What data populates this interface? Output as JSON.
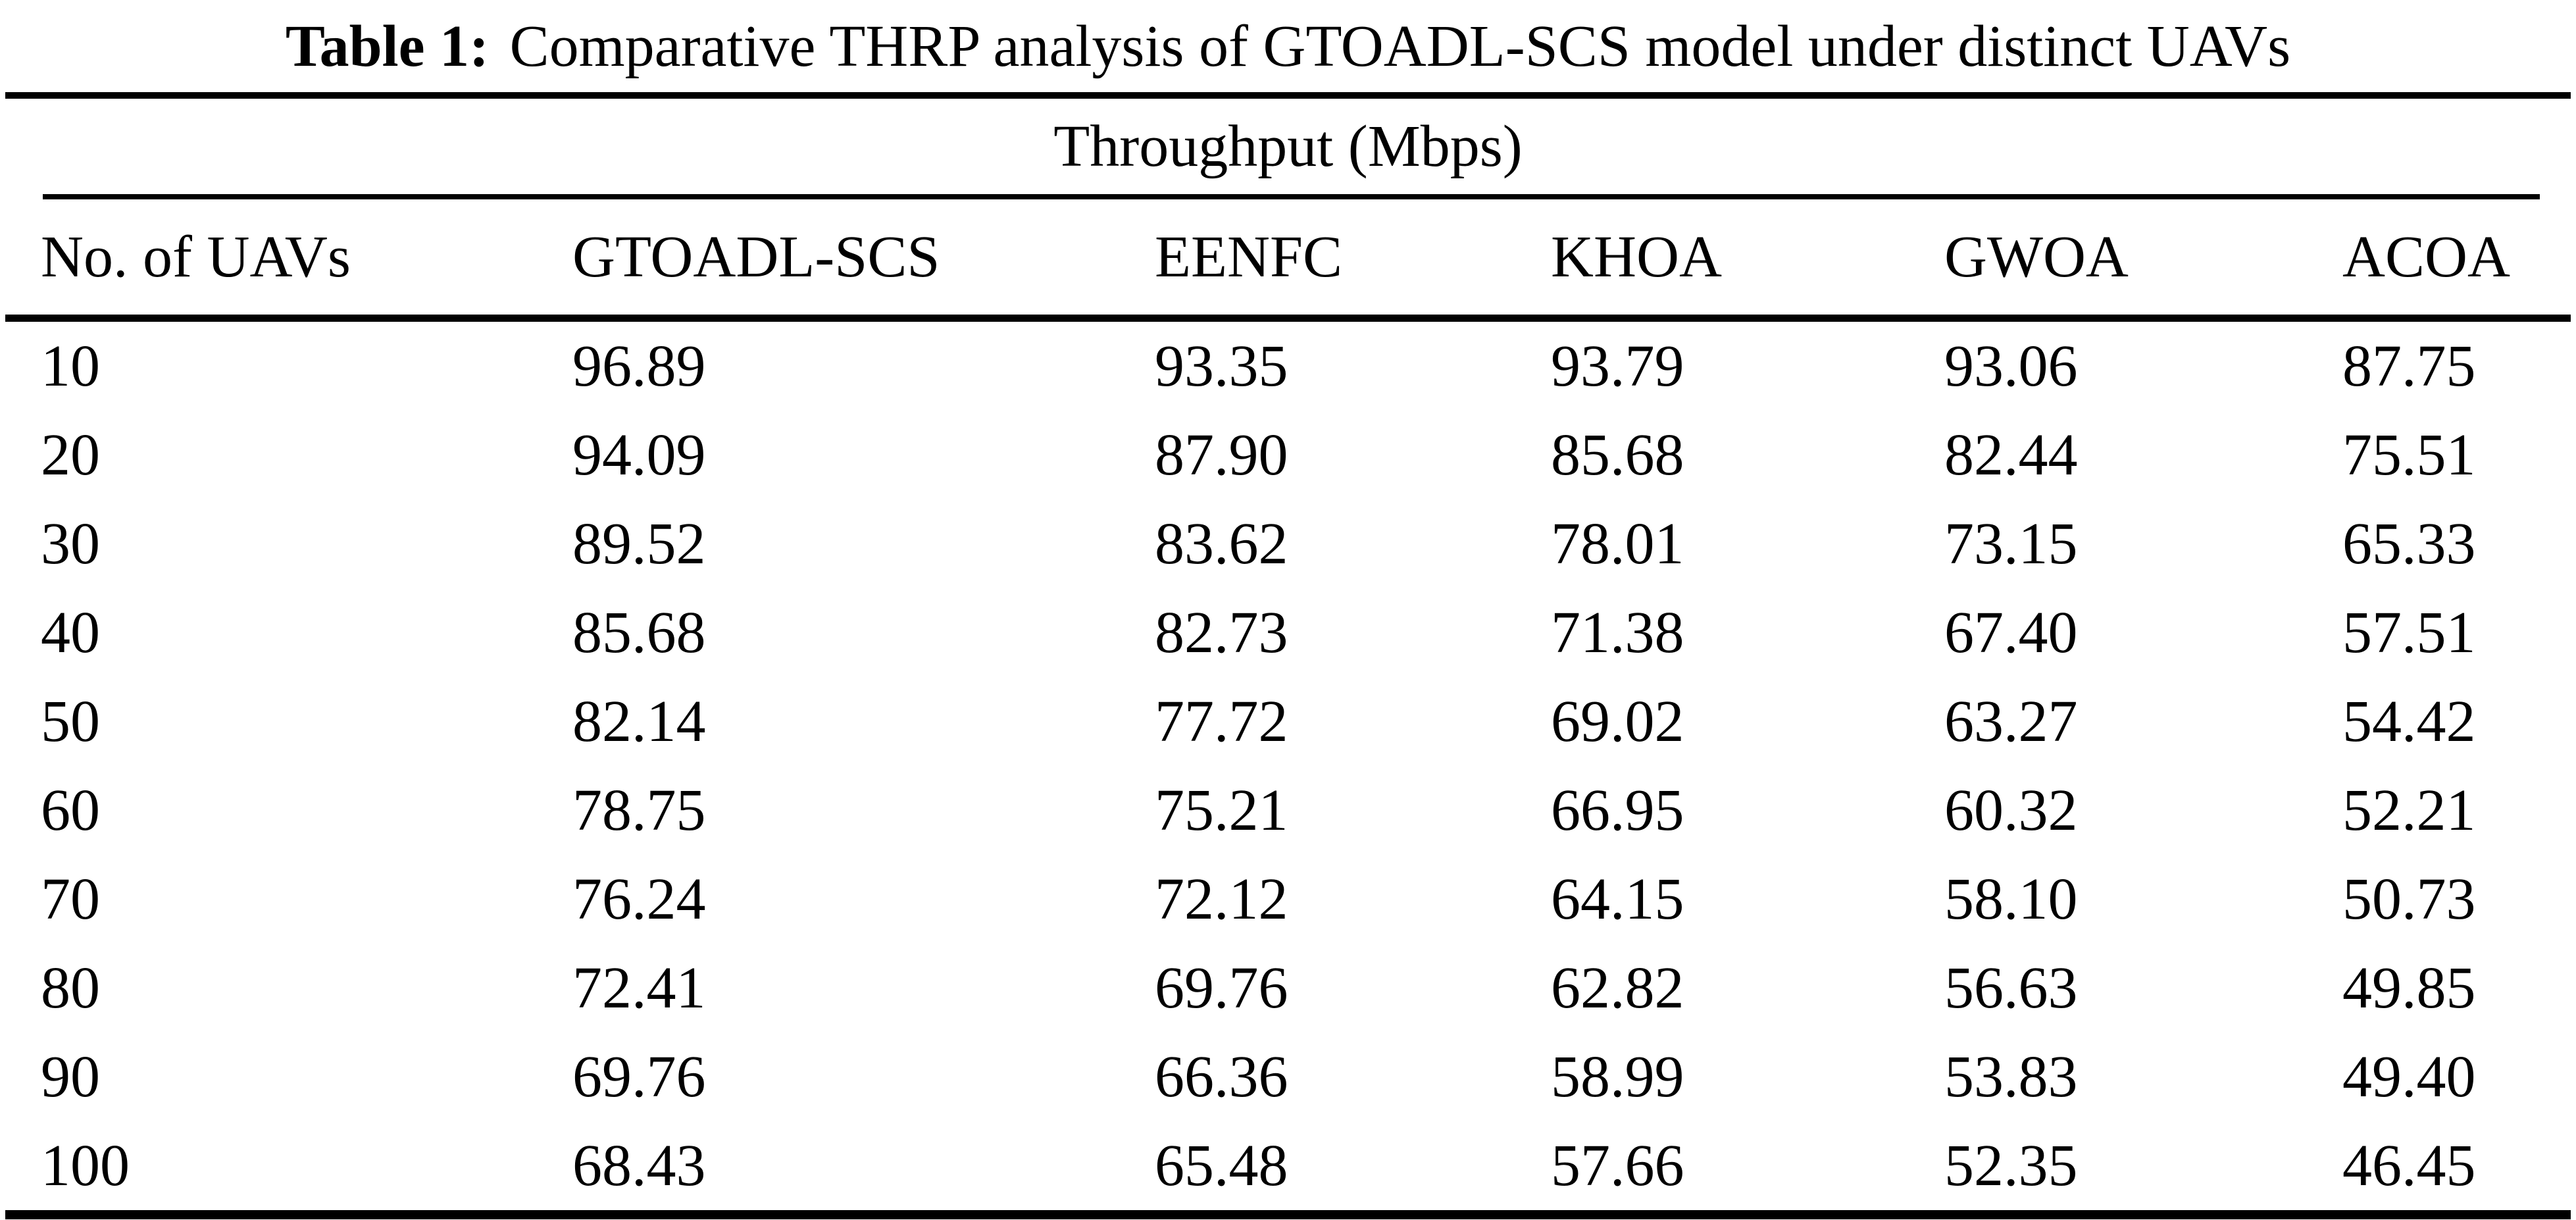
{
  "caption": {
    "label": "Table 1:",
    "text": "Comparative THRP analysis of GTOADL-SCS model under distinct UAVs"
  },
  "table": {
    "group_header": "Throughput (Mbps)",
    "columns": [
      "No. of UAVs",
      "GTOADL-SCS",
      "EENFC",
      "KHOA",
      "GWOA",
      "ACOA"
    ],
    "rows": [
      [
        "10",
        "96.89",
        "93.35",
        "93.79",
        "93.06",
        "87.75"
      ],
      [
        "20",
        "94.09",
        "87.90",
        "85.68",
        "82.44",
        "75.51"
      ],
      [
        "30",
        "89.52",
        "83.62",
        "78.01",
        "73.15",
        "65.33"
      ],
      [
        "40",
        "85.68",
        "82.73",
        "71.38",
        "67.40",
        "57.51"
      ],
      [
        "50",
        "82.14",
        "77.72",
        "69.02",
        "63.27",
        "54.42"
      ],
      [
        "60",
        "78.75",
        "75.21",
        "66.95",
        "60.32",
        "52.21"
      ],
      [
        "70",
        "76.24",
        "72.12",
        "64.15",
        "58.10",
        "50.73"
      ],
      [
        "80",
        "72.41",
        "69.76",
        "62.82",
        "56.63",
        "49.85"
      ],
      [
        "90",
        "69.76",
        "66.36",
        "58.99",
        "53.83",
        "49.40"
      ],
      [
        "100",
        "68.43",
        "65.48",
        "57.66",
        "52.35",
        "46.45"
      ]
    ],
    "colors": {
      "text": "#000000",
      "background": "#ffffff",
      "rule": "#000000"
    }
  },
  "chart_data": {
    "type": "table",
    "title": "Table 1: Comparative THRP analysis of GTOADL-SCS model under distinct UAVs",
    "group_header": "Throughput (Mbps)",
    "x_label": "No. of UAVs",
    "categories": [
      10,
      20,
      30,
      40,
      50,
      60,
      70,
      80,
      90,
      100
    ],
    "series": [
      {
        "name": "GTOADL-SCS",
        "values": [
          96.89,
          94.09,
          89.52,
          85.68,
          82.14,
          78.75,
          76.24,
          72.41,
          69.76,
          68.43
        ]
      },
      {
        "name": "EENFC",
        "values": [
          93.35,
          87.9,
          83.62,
          82.73,
          77.72,
          75.21,
          72.12,
          69.76,
          66.36,
          65.48
        ]
      },
      {
        "name": "KHOA",
        "values": [
          93.79,
          85.68,
          78.01,
          71.38,
          69.02,
          66.95,
          64.15,
          62.82,
          58.99,
          57.66
        ]
      },
      {
        "name": "GWOA",
        "values": [
          93.06,
          82.44,
          73.15,
          67.4,
          63.27,
          60.32,
          58.1,
          56.63,
          53.83,
          52.35
        ]
      },
      {
        "name": "ACOA",
        "values": [
          87.75,
          75.51,
          65.33,
          57.51,
          54.42,
          52.21,
          50.73,
          49.85,
          49.4,
          46.45
        ]
      }
    ],
    "value_unit": "Mbps"
  }
}
